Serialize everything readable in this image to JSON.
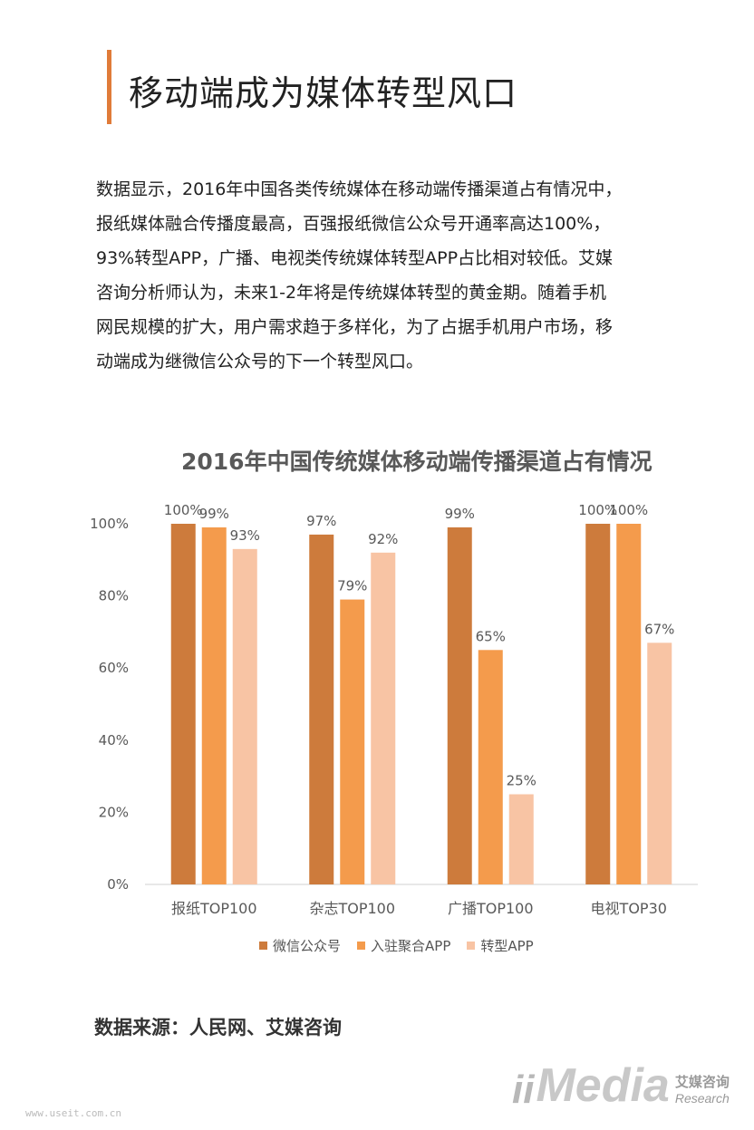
{
  "header": {
    "title": "移动端成为媒体转型风口"
  },
  "paragraph": {
    "lines": [
      "数据显示，2016年中国各类传统媒体在移动端传播渠道占有情况中，",
      "报纸媒体融合传播度最高，百强报纸微信公众号开通率高达100%，",
      "93%转型APP，广播、电视类传统媒体转型APP占比相对较低。艾媒",
      "咨询分析师认为，未来1-2年将是传统媒体转型的黄金期。随着手机",
      "网民规模的扩大，用户需求趋于多样化，为了占据手机用户市场，移",
      "动端成为继微信公众号的下一个转型风口。"
    ]
  },
  "chart_data": {
    "type": "bar",
    "title": "2016年中国传统媒体移动端传播渠道占有情况",
    "categories": [
      "报纸TOP100",
      "杂志TOP100",
      "广播TOP100",
      "电视TOP30"
    ],
    "series": [
      {
        "name": "微信公众号",
        "values": [
          100,
          97,
          99,
          100
        ],
        "color": "#cd7b3c"
      },
      {
        "name": "入驻聚合APP",
        "values": [
          99,
          79,
          65,
          100
        ],
        "color": "#f49b4c"
      },
      {
        "name": "转型APP",
        "values": [
          93,
          92,
          25,
          67
        ],
        "color": "#f8c4a4"
      }
    ],
    "yticks": [
      "0%",
      "20%",
      "40%",
      "60%",
      "80%",
      "100%"
    ],
    "ylim": [
      0,
      100
    ],
    "value_suffix": "%",
    "grid": false,
    "legend": "bottom"
  },
  "footer": {
    "source": "数据来源：人民网、艾媒咨询",
    "logo_mark": "ii",
    "logo_text": "Media",
    "logo_cn": "艾媒咨询",
    "logo_en": "Research",
    "site": "www.useit.com.cn"
  }
}
